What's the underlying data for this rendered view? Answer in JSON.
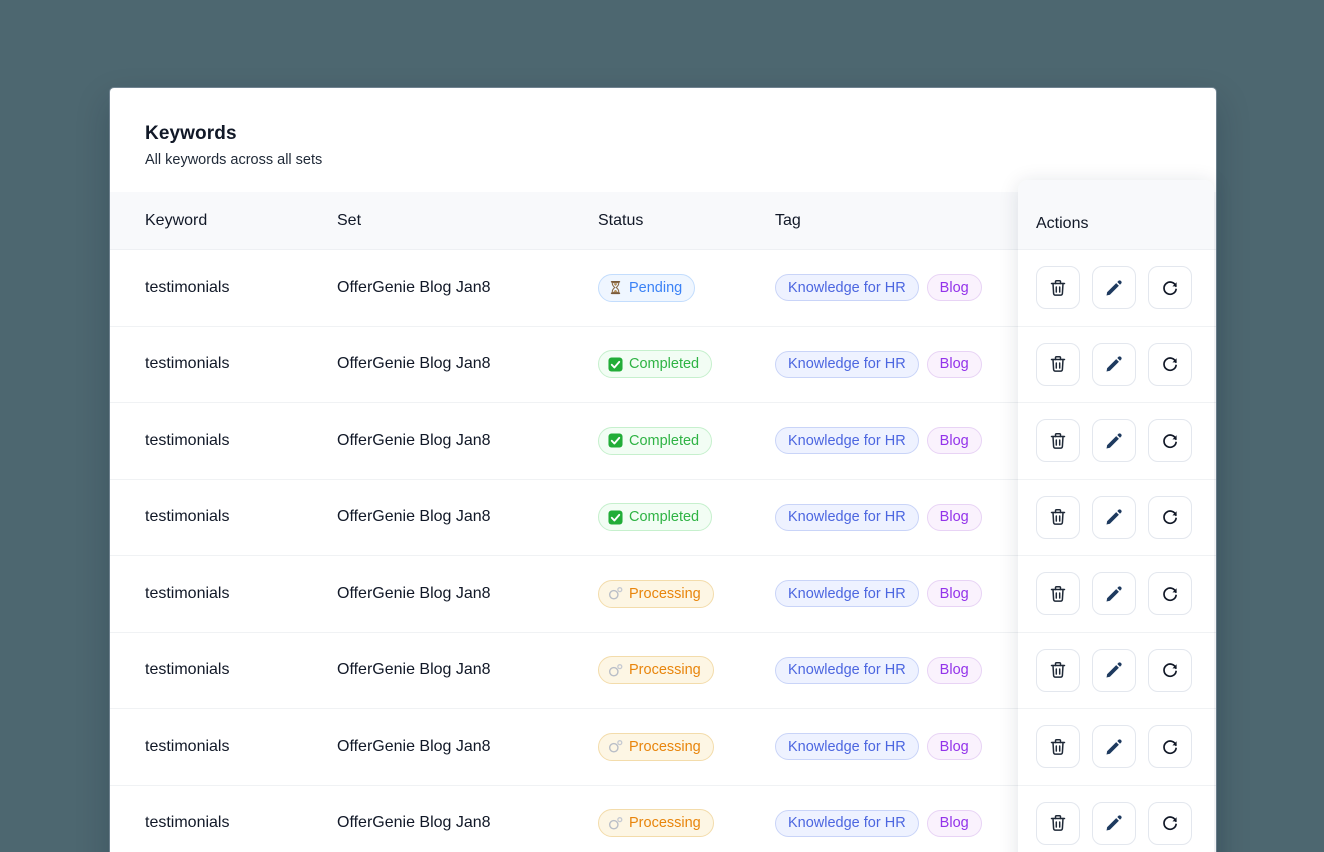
{
  "page": {
    "background_color": "#4d6770"
  },
  "panel": {
    "title": "Keywords",
    "subtitle": "All keywords across all sets"
  },
  "table": {
    "headers": {
      "keyword": "Keyword",
      "set": "Set",
      "status": "Status",
      "tag": "Tag",
      "actions": "Actions"
    },
    "rows": [
      {
        "keyword": "testimonials",
        "set": "OfferGenie Blog Jan8",
        "status": "Pending",
        "tags": [
          "Knowledge for HR",
          "Blog"
        ]
      },
      {
        "keyword": "testimonials",
        "set": "OfferGenie Blog Jan8",
        "status": "Completed",
        "tags": [
          "Knowledge for HR",
          "Blog"
        ]
      },
      {
        "keyword": "testimonials",
        "set": "OfferGenie Blog Jan8",
        "status": "Completed",
        "tags": [
          "Knowledge for HR",
          "Blog"
        ]
      },
      {
        "keyword": "testimonials",
        "set": "OfferGenie Blog Jan8",
        "status": "Completed",
        "tags": [
          "Knowledge for HR",
          "Blog"
        ]
      },
      {
        "keyword": "testimonials",
        "set": "OfferGenie Blog Jan8",
        "status": "Processing",
        "tags": [
          "Knowledge for HR",
          "Blog"
        ]
      },
      {
        "keyword": "testimonials",
        "set": "OfferGenie Blog Jan8",
        "status": "Processing",
        "tags": [
          "Knowledge for HR",
          "Blog"
        ]
      },
      {
        "keyword": "testimonials",
        "set": "OfferGenie Blog Jan8",
        "status": "Processing",
        "tags": [
          "Knowledge for HR",
          "Blog"
        ]
      },
      {
        "keyword": "testimonials",
        "set": "OfferGenie Blog Jan8",
        "status": "Processing",
        "tags": [
          "Knowledge for HR",
          "Blog"
        ]
      }
    ],
    "statuses": {
      "Pending": {
        "label": "Pending",
        "icon": "hourglass-icon",
        "color": "#3b82f6",
        "bg": "#eff6ff",
        "border": "#c3ddfd"
      },
      "Completed": {
        "label": "Completed",
        "icon": "check-icon",
        "color": "#2fb344",
        "bg": "#f2fdf4",
        "border": "#c6f0cd"
      },
      "Processing": {
        "label": "Processing",
        "icon": "spinner-icon",
        "color": "#e8850c",
        "bg": "#fdf6e4",
        "border": "#f3dcab"
      }
    },
    "tags": {
      "Knowledge for HR": {
        "color": "#4c66e0",
        "bg": "#eef2ff",
        "border": "#c9d4f8"
      },
      "Blog": {
        "color": "#9333ea",
        "bg": "#faf2fd",
        "border": "#e8d3f5"
      }
    },
    "row_actions": [
      {
        "name": "delete",
        "icon": "trash-icon"
      },
      {
        "name": "edit",
        "icon": "pencil-icon"
      },
      {
        "name": "refresh",
        "icon": "refresh-icon"
      }
    ]
  }
}
